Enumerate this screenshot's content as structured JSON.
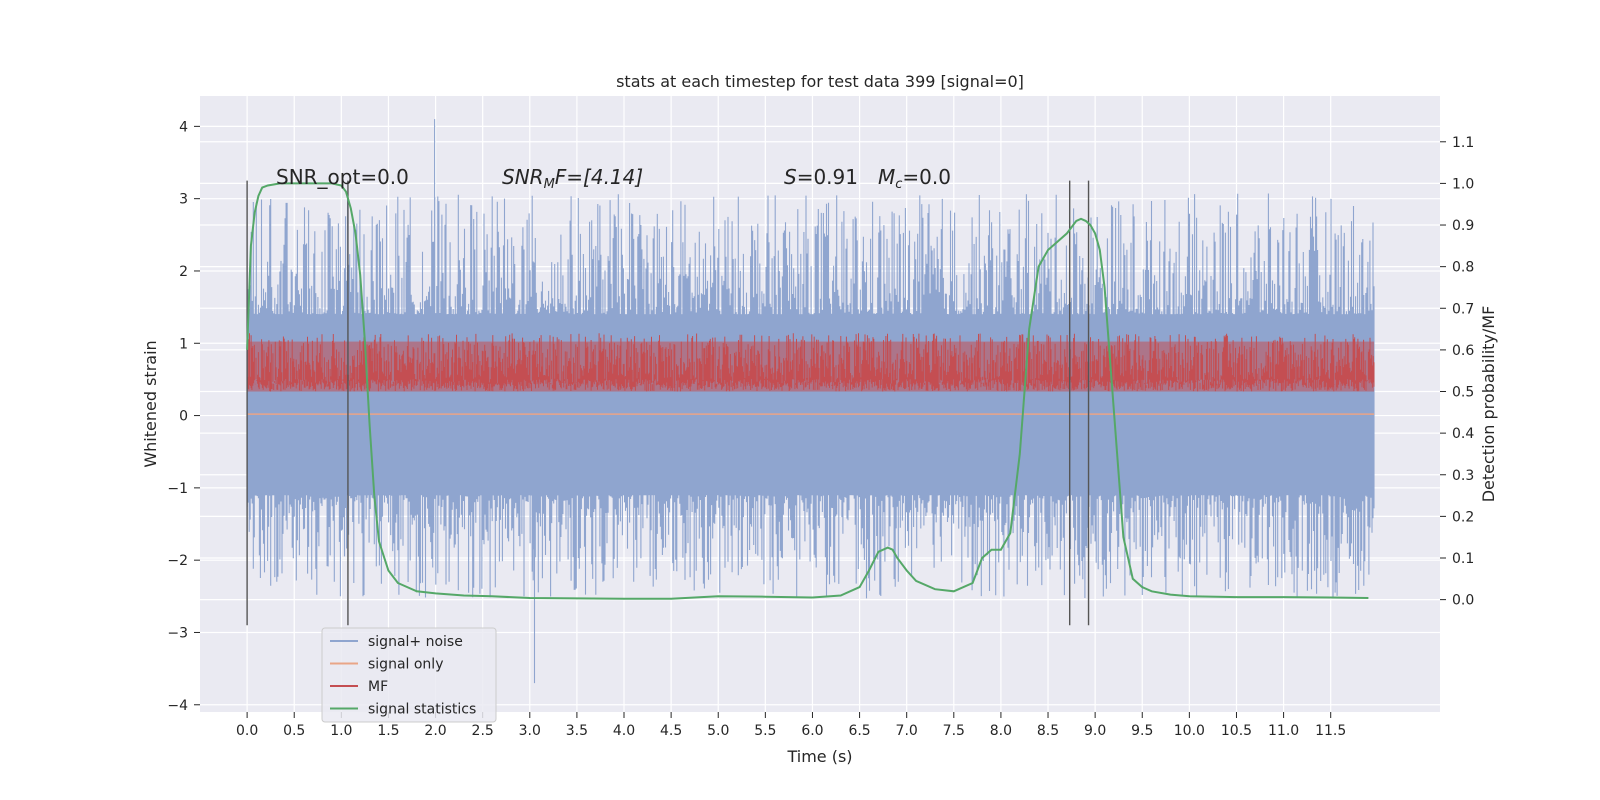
{
  "chart_data": {
    "type": "line",
    "title": "stats at each timestep for test data 399 [signal=0]",
    "xlabel": "Time (s)",
    "ylabel": "Whitened strain",
    "y2label": "Detection probability/MF",
    "xlim": [
      -0.5,
      12.66
    ],
    "ylim": [
      -4.1,
      4.42
    ],
    "y2lim": [
      -0.27,
      1.21
    ],
    "x_ticks": [
      "0.0",
      "0.5",
      "1.0",
      "1.5",
      "2.0",
      "2.5",
      "3.0",
      "3.5",
      "4.0",
      "4.5",
      "5.0",
      "5.5",
      "6.0",
      "6.5",
      "7.0",
      "7.5",
      "8.0",
      "8.5",
      "9.0",
      "9.5",
      "10.0",
      "10.5",
      "11.0",
      "11.5"
    ],
    "y_ticks": [
      "4",
      "3",
      "2",
      "1",
      "0",
      "−1",
      "−2",
      "−3",
      "−4"
    ],
    "y2_ticks": [
      "1.1",
      "1.0",
      "0.9",
      "0.8",
      "0.7",
      "0.6",
      "0.5",
      "0.4",
      "0.3",
      "0.2",
      "0.1",
      "0.0"
    ],
    "grid": true,
    "legend_position": "lower-left",
    "annotations": {
      "snr_opt": "SNR_opt=0.0",
      "snr_mf_label": "SNR",
      "snr_mf_sub": "M",
      "snr_mf_rest": "F=[4.14]",
      "s_label": "S",
      "s_value": "=0.91",
      "mc_label": "M",
      "mc_sub": "c",
      "mc_value": "=0.0"
    },
    "vlines_x": [
      0.0,
      1.07,
      8.73,
      8.93
    ],
    "series": [
      {
        "name": "signal+ noise",
        "color": "#8fa5cf",
        "envelope": {
          "x_start": 0.0,
          "x_end": 11.96,
          "core_min": -1.1,
          "core_max": 1.4,
          "peak_min": -3.7,
          "peak_max": 4.1
        }
      },
      {
        "name": "signal only",
        "color": "#e9a587",
        "constant_y": 0.02
      },
      {
        "name": "MF",
        "color": "#c44e52",
        "axis": "right",
        "band": {
          "x_start": 0.0,
          "x_end": 11.96,
          "min": 0.5,
          "max": 0.62,
          "peak_max": 0.64
        }
      },
      {
        "name": "signal statistics",
        "color": "#55a868",
        "axis": "right",
        "x": [
          0.0,
          0.04,
          0.08,
          0.12,
          0.16,
          0.22,
          0.35,
          0.5,
          0.7,
          0.9,
          1.0,
          1.05,
          1.1,
          1.15,
          1.2,
          1.25,
          1.3,
          1.35,
          1.4,
          1.5,
          1.6,
          1.8,
          2.0,
          2.3,
          2.6,
          3.0,
          3.5,
          4.0,
          4.5,
          5.0,
          5.5,
          6.0,
          6.3,
          6.5,
          6.6,
          6.7,
          6.8,
          6.85,
          6.9,
          7.0,
          7.1,
          7.3,
          7.5,
          7.7,
          7.8,
          7.9,
          8.0,
          8.1,
          8.2,
          8.3,
          8.4,
          8.5,
          8.6,
          8.7,
          8.8,
          8.85,
          8.9,
          8.95,
          9.0,
          9.05,
          9.1,
          9.2,
          9.3,
          9.4,
          9.5,
          9.6,
          9.8,
          10.0,
          10.5,
          11.0,
          11.5,
          11.9
        ],
        "y": [
          0.6,
          0.85,
          0.93,
          0.97,
          0.99,
          0.995,
          1.0,
          1.0,
          1.0,
          1.0,
          0.995,
          0.98,
          0.94,
          0.88,
          0.78,
          0.62,
          0.42,
          0.25,
          0.14,
          0.07,
          0.04,
          0.02,
          0.015,
          0.01,
          0.008,
          0.004,
          0.003,
          0.002,
          0.002,
          0.008,
          0.007,
          0.005,
          0.01,
          0.03,
          0.07,
          0.115,
          0.125,
          0.12,
          0.1,
          0.07,
          0.045,
          0.025,
          0.02,
          0.04,
          0.1,
          0.12,
          0.12,
          0.16,
          0.35,
          0.65,
          0.8,
          0.84,
          0.86,
          0.88,
          0.91,
          0.915,
          0.91,
          0.9,
          0.88,
          0.84,
          0.75,
          0.45,
          0.15,
          0.05,
          0.03,
          0.02,
          0.012,
          0.008,
          0.006,
          0.006,
          0.005,
          0.004
        ]
      }
    ]
  }
}
